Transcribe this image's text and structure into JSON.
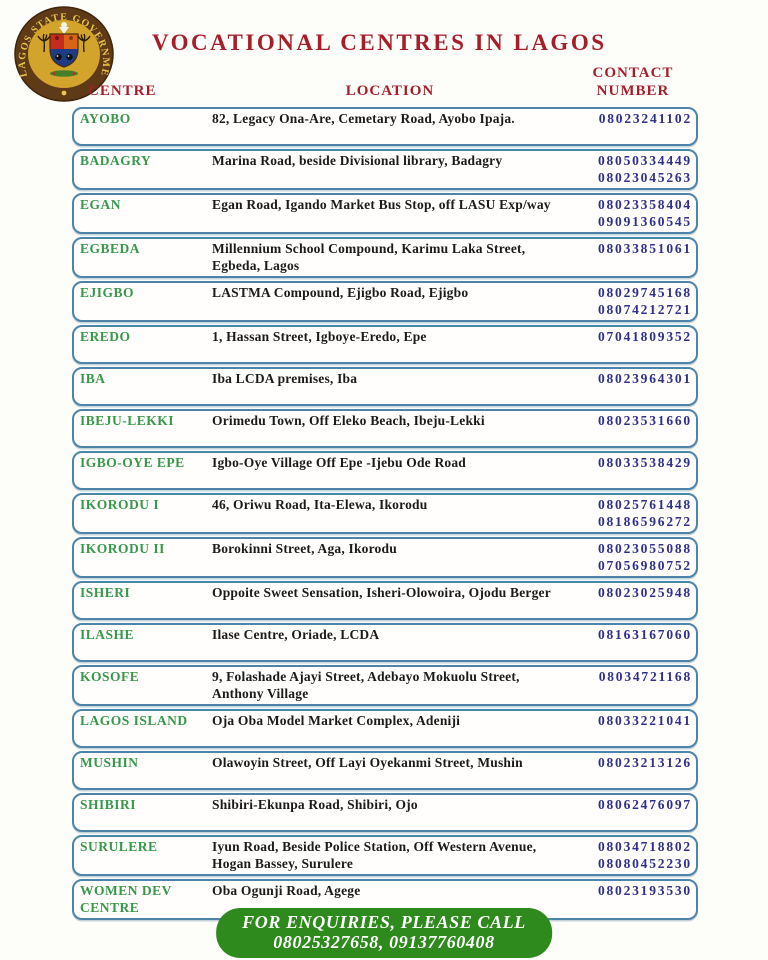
{
  "header": {
    "title": "VOCATIONAL CENTRES IN LAGOS",
    "logo": {
      "name": "lagos-state-government-seal",
      "ring_text": "LAGOS STATE GOVERNMENT"
    }
  },
  "table": {
    "headers": {
      "centre": "CENTRE",
      "location": "LOCATION",
      "contact_line1": "CONTACT",
      "contact_line2": "NUMBER"
    },
    "rows": [
      {
        "centre": "AYOBO",
        "location": "82, Legacy Ona-Are, Cemetary Road, Ayobo Ipaja.",
        "numbers": [
          "08023241102"
        ]
      },
      {
        "centre": "BADAGRY",
        "location": "Marina Road, beside Divisional library, Badagry",
        "numbers": [
          "08050334449",
          "08023045263"
        ]
      },
      {
        "centre": "EGAN",
        "location": "Egan Road, Igando Market Bus Stop, off LASU Exp/way",
        "numbers": [
          "08023358404",
          "09091360545"
        ]
      },
      {
        "centre": "EGBEDA",
        "location": "Millennium School Compound, Karimu Laka Street, Egbeda, Lagos",
        "numbers": [
          "08033851061"
        ]
      },
      {
        "centre": "EJIGBO",
        "location": "LASTMA Compound, Ejigbo Road, Ejigbo",
        "numbers": [
          "08029745168",
          "08074212721"
        ]
      },
      {
        "centre": "EREDO",
        "location": "1, Hassan Street, Igboye-Eredo, Epe",
        "numbers": [
          "07041809352"
        ]
      },
      {
        "centre": "IBA",
        "location": "Iba LCDA premises, Iba",
        "numbers": [
          "08023964301"
        ]
      },
      {
        "centre": "IBEJU-LEKKI",
        "location": "Orimedu Town, Off Eleko Beach, Ibeju-Lekki",
        "numbers": [
          "08023531660"
        ]
      },
      {
        "centre": "IGBO-OYE EPE",
        "location": "Igbo-Oye Village Off Epe -Ijebu Ode Road",
        "numbers": [
          "08033538429"
        ]
      },
      {
        "centre": "IKORODU I",
        "location": "46, Oriwu Road, Ita-Elewa, Ikorodu",
        "numbers": [
          "08025761448",
          "08186596272"
        ]
      },
      {
        "centre": "IKORODU II",
        "location": "Borokinni Street, Aga, Ikorodu",
        "numbers": [
          "08023055088",
          "07056980752"
        ]
      },
      {
        "centre": "ISHERI",
        "location": "Oppoite Sweet Sensation, Isheri-Olowoira, Ojodu Berger",
        "numbers": [
          "08023025948"
        ]
      },
      {
        "centre": "ILASHE",
        "location": "Ilase Centre, Oriade, LCDA",
        "numbers": [
          "08163167060"
        ]
      },
      {
        "centre": "KOSOFE",
        "location": "9, Folashade Ajayi Street, Adebayo Mokuolu Street, Anthony Village",
        "numbers": [
          "08034721168"
        ]
      },
      {
        "centre": "LAGOS ISLAND",
        "location": "Oja Oba Model Market Complex, Adeniji",
        "numbers": [
          "08033221041"
        ]
      },
      {
        "centre": "MUSHIN",
        "location": "Olawoyin Street, Off Layi Oyekanmi Street, Mushin",
        "numbers": [
          "08023213126"
        ]
      },
      {
        "centre": "SHIBIRI",
        "location": "Shibiri-Ekunpa Road, Shibiri, Ojo",
        "numbers": [
          "08062476097"
        ]
      },
      {
        "centre": "SURULERE",
        "location": "Iyun Road, Beside Police Station, Off Western Avenue, Hogan Bassey, Surulere",
        "numbers": [
          "08034718802",
          "08080452230"
        ]
      },
      {
        "centre": "WOMEN DEV CENTRE",
        "location": "Oba Ogunji Road, Agege",
        "numbers": [
          "08023193530"
        ]
      }
    ]
  },
  "footer": {
    "line1": "FOR ENQUIRIES, PLEASE CALL",
    "line2": "08025327658, 09137760408"
  },
  "colors": {
    "title_red": "#a51e29",
    "centre_green": "#37984a",
    "number_navy": "#2f2f8c",
    "row_border_blue": "#4d85aa",
    "banner_green": "#2e8a1c",
    "seal_ring_brown": "#5e3a17",
    "seal_gold": "#d3a42b"
  }
}
